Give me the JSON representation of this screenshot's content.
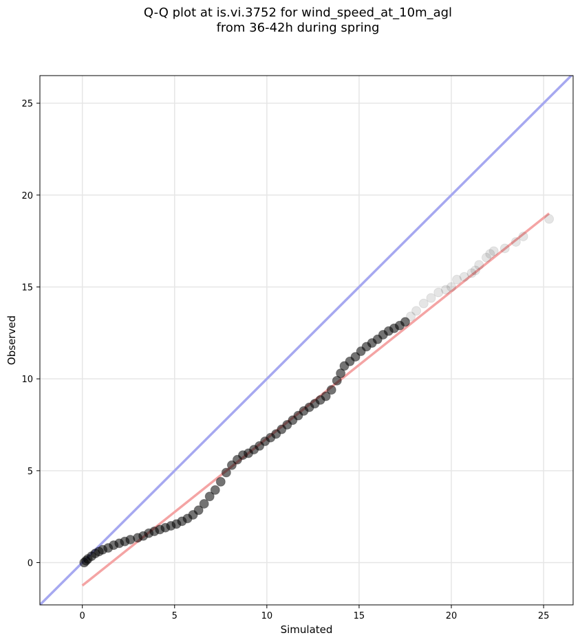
{
  "chart_data": {
    "type": "scatter",
    "title_lines": [
      "Q-Q plot at is.vi.3752 for wind_speed_at_10m_agl",
      "from 36-42h during spring"
    ],
    "xlabel": "Simulated",
    "ylabel": "Observed",
    "xlim": [
      -2.3,
      26.6
    ],
    "ylim": [
      -2.3,
      26.5
    ],
    "xticks": [
      0,
      5,
      10,
      15,
      20,
      25
    ],
    "yticks": [
      0,
      5,
      10,
      15,
      20,
      25
    ],
    "grid": true,
    "colors": {
      "points": "#000000",
      "identity_line": "#a6a8f0",
      "fit_line": "#f4a4a4",
      "grid": "#e6e6e6"
    },
    "identity_line": {
      "x": [
        -2.3,
        26.6
      ],
      "y": [
        -2.3,
        26.6
      ]
    },
    "fit_line": {
      "x": [
        0,
        25.3
      ],
      "y": [
        -1.25,
        19.0
      ]
    },
    "series": [
      {
        "x": [
          0.1,
          0.2,
          0.3,
          0.5,
          0.7,
          0.9,
          1.1,
          1.4,
          1.7,
          2.0,
          2.3,
          2.6,
          3.0,
          3.3,
          3.6,
          3.9,
          4.2,
          4.5,
          4.8,
          5.1,
          5.4,
          5.7,
          6.0,
          6.3,
          6.6,
          6.9,
          7.2,
          7.5,
          7.8,
          8.1,
          8.4,
          8.7,
          9.0,
          9.3,
          9.6,
          9.9,
          10.2,
          10.5,
          10.8,
          11.1,
          11.4,
          11.7,
          12.0,
          12.3,
          12.6,
          12.9,
          13.2,
          13.5,
          13.8,
          14.0,
          14.2,
          14.5,
          14.8,
          15.1,
          15.4,
          15.7,
          16.0,
          16.3,
          16.6,
          16.9,
          17.2,
          17.5,
          17.8,
          18.1,
          18.5,
          18.9,
          19.3,
          19.7,
          20.0,
          20.3,
          20.7,
          21.1,
          21.3,
          21.5,
          21.9,
          22.1,
          22.3,
          22.9,
          23.5,
          23.9,
          25.3
        ],
        "y": [
          0.0,
          0.1,
          0.2,
          0.35,
          0.5,
          0.6,
          0.7,
          0.8,
          0.95,
          1.05,
          1.15,
          1.25,
          1.35,
          1.45,
          1.6,
          1.7,
          1.8,
          1.9,
          2.0,
          2.1,
          2.25,
          2.4,
          2.6,
          2.85,
          3.2,
          3.6,
          3.95,
          4.4,
          4.9,
          5.3,
          5.6,
          5.85,
          5.95,
          6.15,
          6.35,
          6.6,
          6.8,
          7.0,
          7.25,
          7.5,
          7.75,
          8.0,
          8.25,
          8.45,
          8.65,
          8.85,
          9.05,
          9.4,
          9.9,
          10.3,
          10.7,
          10.95,
          11.2,
          11.5,
          11.75,
          11.95,
          12.15,
          12.4,
          12.6,
          12.75,
          12.9,
          13.1,
          13.4,
          13.7,
          14.1,
          14.4,
          14.7,
          14.85,
          15.0,
          15.4,
          15.55,
          15.75,
          15.9,
          16.2,
          16.6,
          16.8,
          16.95,
          17.1,
          17.45,
          17.75,
          18.7
        ]
      }
    ]
  }
}
